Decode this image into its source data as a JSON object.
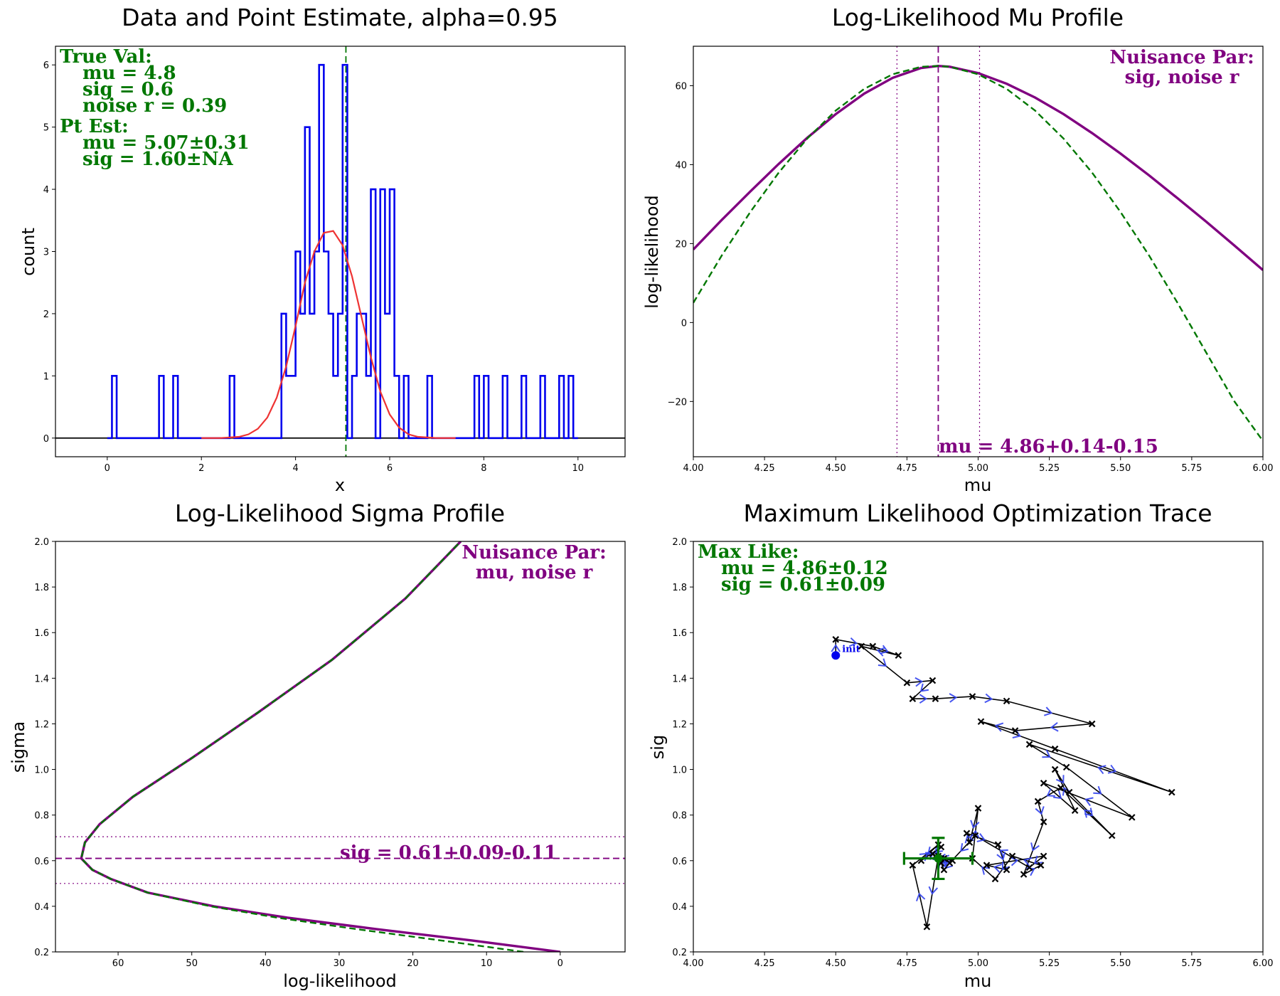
{
  "colors": {
    "hist": "#0000ee",
    "fit": "#ee3333",
    "profile": "#800080",
    "approx": "#007700",
    "green_text": "#007700",
    "purple_text": "#800080",
    "trace": "#000000",
    "arrow": "#3344ee"
  },
  "chart_data": [
    {
      "type": "line",
      "title": "Data and Point Estimate, alpha=0.95",
      "xlabel": "x",
      "ylabel": "count",
      "xlim": [
        -1.1,
        11.0
      ],
      "ylim": [
        -0.3,
        6.3
      ],
      "xticks": [
        0,
        2,
        4,
        6,
        8,
        10
      ],
      "yticks": [
        0,
        1,
        2,
        3,
        4,
        5,
        6
      ],
      "series": [
        {
          "kind": "histogram",
          "color": "hist",
          "note_x": "bin centers",
          "x": [
            0.0,
            0.1,
            0.2,
            0.3,
            0.4,
            0.5,
            0.6,
            0.7,
            0.8,
            0.9,
            1.0,
            1.1,
            1.2,
            1.3,
            1.4,
            1.5,
            1.6,
            1.7,
            1.8,
            1.9,
            2.0,
            2.1,
            2.2,
            2.3,
            2.4,
            2.5,
            2.6,
            2.7,
            2.8,
            2.9,
            3.0,
            3.1,
            3.2,
            3.3,
            3.4,
            3.5,
            3.6,
            3.7,
            3.8,
            3.9,
            4.0,
            4.1,
            4.2,
            4.3,
            4.4,
            4.5,
            4.6,
            4.7,
            4.8,
            4.9,
            5.0,
            5.1,
            5.2,
            5.3,
            5.4,
            5.5,
            5.6,
            5.7,
            5.8,
            5.9,
            6.0,
            6.1,
            6.2,
            6.3,
            6.4,
            6.5,
            6.6,
            6.7,
            6.8,
            6.9,
            7.0,
            7.1,
            7.2,
            7.3,
            7.4,
            7.5,
            7.6,
            7.7,
            7.8,
            7.9,
            8.0,
            8.1,
            8.2,
            8.3,
            8.4,
            8.5,
            8.6,
            8.7,
            8.8,
            8.9,
            9.0,
            9.1,
            9.2,
            9.3,
            9.4,
            9.5,
            9.6,
            9.7,
            9.8,
            9.9
          ],
          "values": [
            0,
            1,
            0,
            0,
            0,
            0,
            0,
            0,
            0,
            0,
            0,
            1,
            0,
            0,
            1,
            0,
            0,
            0,
            0,
            0,
            0,
            0,
            0,
            0,
            0,
            0,
            1,
            0,
            0,
            0,
            0,
            0,
            0,
            0,
            0,
            0,
            0,
            2,
            1,
            1,
            3,
            2,
            5,
            2,
            3,
            6,
            3,
            2,
            1,
            2,
            6,
            0,
            1,
            2,
            2,
            1,
            4,
            0,
            4,
            2,
            4,
            1,
            0,
            1,
            0,
            0,
            0,
            0,
            1,
            0,
            0,
            0,
            0,
            0,
            0,
            0,
            0,
            0,
            1,
            0,
            1,
            0,
            0,
            0,
            1,
            0,
            0,
            0,
            1,
            0,
            0,
            0,
            1,
            0,
            0,
            0,
            1,
            0,
            1,
            0
          ]
        },
        {
          "kind": "line",
          "name": "fit",
          "color": "fit",
          "x": [
            2.0,
            2.4,
            2.8,
            3.0,
            3.2,
            3.4,
            3.6,
            3.8,
            4.0,
            4.2,
            4.4,
            4.6,
            4.8,
            5.0,
            5.2,
            5.4,
            5.6,
            5.8,
            6.0,
            6.2,
            6.4,
            6.6,
            6.8,
            7.0,
            7.4
          ],
          "y": [
            0.0,
            0.0,
            0.02,
            0.06,
            0.15,
            0.33,
            0.65,
            1.15,
            1.8,
            2.5,
            3.0,
            3.3,
            3.33,
            3.1,
            2.6,
            1.95,
            1.3,
            0.75,
            0.38,
            0.17,
            0.06,
            0.02,
            0.01,
            0.0,
            0.0
          ]
        }
      ],
      "vlines": [
        {
          "x": 5.07,
          "color": "approx",
          "style": "dashed"
        }
      ],
      "hlines": [
        {
          "y": 0,
          "color": "trace",
          "style": "solid"
        }
      ],
      "annotations": {
        "true_header": "True Val:",
        "true_mu": "mu = 4.8",
        "true_sig": "sig = 0.6",
        "true_noise": "noise r = 0.39",
        "pt_header": "Pt Est:",
        "pt_mu": "mu = 5.07±0.31",
        "pt_sig": "sig = 1.60±NA"
      }
    },
    {
      "type": "line",
      "title": "Log-Likelihood Mu Profile",
      "xlabel": "mu",
      "ylabel": "log-likelihood",
      "xlim": [
        4.0,
        6.0
      ],
      "ylim": [
        -34,
        70
      ],
      "xticks": [
        4.0,
        4.25,
        4.5,
        4.75,
        5.0,
        5.25,
        5.5,
        5.75,
        6.0
      ],
      "xtick_labels": [
        "4.00",
        "4.25",
        "4.50",
        "4.75",
        "5.00",
        "5.25",
        "5.50",
        "5.75",
        "6.00"
      ],
      "yticks": [
        -20,
        0,
        20,
        40,
        60
      ],
      "yticklabels": [
        "−20",
        "0",
        "20",
        "40",
        "60"
      ],
      "series": [
        {
          "kind": "line",
          "color": "profile",
          "style": "solid",
          "x": [
            4.0,
            4.1,
            4.2,
            4.3,
            4.4,
            4.5,
            4.6,
            4.7,
            4.8,
            4.86,
            4.9,
            5.0,
            5.1,
            5.2,
            5.3,
            5.4,
            5.5,
            5.6,
            5.7,
            5.8,
            5.9,
            6.0
          ],
          "y": [
            18.5,
            26.0,
            33.2,
            40.2,
            46.8,
            52.8,
            58.0,
            62.0,
            64.5,
            65.0,
            64.8,
            63.2,
            60.5,
            57.0,
            52.8,
            48.0,
            42.8,
            37.3,
            31.5,
            25.6,
            19.5,
            13.3
          ]
        },
        {
          "kind": "line",
          "color": "approx",
          "style": "dashed",
          "x": [
            4.0,
            4.1,
            4.2,
            4.3,
            4.4,
            4.5,
            4.6,
            4.7,
            4.8,
            4.86,
            4.9,
            5.0,
            5.1,
            5.2,
            5.3,
            5.4,
            5.5,
            5.6,
            5.7,
            5.8,
            5.9,
            6.0
          ],
          "y": [
            5.0,
            17.0,
            28.0,
            38.0,
            46.6,
            53.7,
            59.2,
            62.9,
            64.8,
            65.0,
            64.8,
            62.9,
            59.2,
            53.7,
            46.6,
            38.0,
            28.0,
            17.0,
            5.0,
            -7.5,
            -20.0,
            -30.0
          ]
        }
      ],
      "vlines": [
        {
          "x": 4.86,
          "color": "profile",
          "style": "dashed"
        },
        {
          "x": 4.715,
          "color": "profile",
          "style": "dotted"
        },
        {
          "x": 5.005,
          "color": "profile",
          "style": "dotted"
        }
      ],
      "annotations": {
        "nuisance_header": "Nuisance Par:",
        "nuisance_params": "sig, noise r",
        "estimate": "mu = 4.86+0.14-0.15"
      }
    },
    {
      "type": "line",
      "title": "Log-Likelihood Sigma Profile",
      "xlabel": "log-likelihood",
      "ylabel": "sigma",
      "xlim": [
        68.5,
        -8.8
      ],
      "ylim": [
        0.2,
        2.0
      ],
      "xticks": [
        60,
        50,
        40,
        30,
        20,
        10,
        0
      ],
      "yticks": [
        0.2,
        0.4,
        0.6,
        0.8,
        1.0,
        1.2,
        1.4,
        1.6,
        1.8,
        2.0
      ],
      "ytick_labels": [
        "0.2",
        "0.4",
        "0.6",
        "0.8",
        "1.0",
        "1.2",
        "1.4",
        "1.6",
        "1.8",
        "2.0"
      ],
      "series": [
        {
          "kind": "line",
          "color": "profile",
          "style": "solid",
          "x": [
            0.0,
            12.0,
            25.0,
            37.0,
            47.0,
            56.0,
            61.0,
            63.5,
            65.0,
            64.5,
            62.5,
            58.0,
            50.0,
            41.0,
            31.0,
            21.0,
            13.5
          ],
          "y": [
            0.2,
            0.25,
            0.3,
            0.35,
            0.4,
            0.46,
            0.52,
            0.56,
            0.61,
            0.68,
            0.76,
            0.88,
            1.05,
            1.25,
            1.48,
            1.75,
            2.0
          ]
        },
        {
          "kind": "line",
          "color": "approx",
          "style": "dashed",
          "x": [
            5.0,
            15.0,
            27.0,
            38.0,
            47.5,
            56.0,
            61.0,
            63.5,
            65.0,
            64.5,
            62.5,
            58.0,
            50.0,
            41.0,
            31.0,
            21.0,
            13.5
          ],
          "y": [
            0.2,
            0.245,
            0.297,
            0.348,
            0.4,
            0.46,
            0.52,
            0.56,
            0.61,
            0.68,
            0.76,
            0.88,
            1.05,
            1.25,
            1.48,
            1.75,
            2.0
          ]
        }
      ],
      "hlines": [
        {
          "y": 0.61,
          "color": "profile",
          "style": "dashed"
        },
        {
          "y": 0.705,
          "color": "profile",
          "style": "dotted"
        },
        {
          "y": 0.5,
          "color": "profile",
          "style": "dotted"
        }
      ],
      "annotations": {
        "nuisance_header": "Nuisance Par:",
        "nuisance_params": "mu, noise r",
        "estimate": "sig = 0.61+0.09-0.11"
      }
    },
    {
      "type": "scatter",
      "title": "Maximum Likelihood Optimization Trace",
      "xlabel": "mu",
      "ylabel": "sig",
      "xlim": [
        4.0,
        6.0
      ],
      "ylim": [
        0.2,
        2.0
      ],
      "xticks": [
        4.0,
        4.25,
        4.5,
        4.75,
        5.0,
        5.25,
        5.5,
        5.75,
        6.0
      ],
      "xtick_labels": [
        "4.00",
        "4.25",
        "4.50",
        "4.75",
        "5.00",
        "5.25",
        "5.50",
        "5.75",
        "6.00"
      ],
      "yticks": [
        0.2,
        0.4,
        0.6,
        0.8,
        1.0,
        1.2,
        1.4,
        1.6,
        1.8,
        2.0
      ],
      "ytick_labels": [
        "0.2",
        "0.4",
        "0.6",
        "0.8",
        "1.0",
        "1.2",
        "1.4",
        "1.6",
        "1.8",
        "2.0"
      ],
      "series": [
        {
          "kind": "trace",
          "color": "trace",
          "x": [
            4.5,
            4.5,
            4.63,
            4.72,
            4.59,
            4.75,
            4.84,
            4.77,
            4.85,
            4.98,
            5.1,
            5.4,
            5.13,
            5.01,
            5.27,
            5.68,
            5.18,
            5.31,
            5.54,
            5.23,
            5.34,
            5.27,
            5.32,
            5.47,
            5.29,
            5.21,
            5.23,
            5.16,
            5.22,
            5.12,
            5.06,
            4.98,
            5.0,
            4.97,
            4.96,
            5.07,
            5.1,
            5.03,
            5.23,
            5.18,
            4.99,
            4.9,
            4.88,
            4.86,
            4.82,
            4.77,
            4.86,
            4.8,
            4.87,
            4.84,
            4.87,
            4.91,
            4.85,
            4.87,
            4.88,
            4.86
          ],
          "y": [
            1.5,
            1.57,
            1.54,
            1.5,
            1.54,
            1.38,
            1.39,
            1.31,
            1.31,
            1.32,
            1.3,
            1.2,
            1.17,
            1.21,
            1.09,
            0.9,
            1.11,
            1.01,
            0.79,
            0.94,
            0.82,
            1.0,
            0.9,
            0.71,
            0.92,
            0.86,
            0.77,
            0.54,
            0.58,
            0.62,
            0.52,
            0.61,
            0.83,
            0.68,
            0.72,
            0.67,
            0.56,
            0.58,
            0.62,
            0.57,
            0.71,
            0.59,
            0.56,
            0.62,
            0.31,
            0.58,
            0.67,
            0.6,
            0.66,
            0.63,
            0.59,
            0.6,
            0.62,
            0.61,
            0.61,
            0.61
          ]
        }
      ],
      "init_point": {
        "x": 4.5,
        "y": 1.5,
        "label": "init"
      },
      "best_fit": {
        "x": 4.86,
        "y": 0.61,
        "xerr": 0.12,
        "yerr": 0.09
      },
      "annotations": {
        "header": "Max Like:",
        "mu": "mu = 4.86±0.12",
        "sig": "sig = 0.61±0.09"
      }
    }
  ]
}
